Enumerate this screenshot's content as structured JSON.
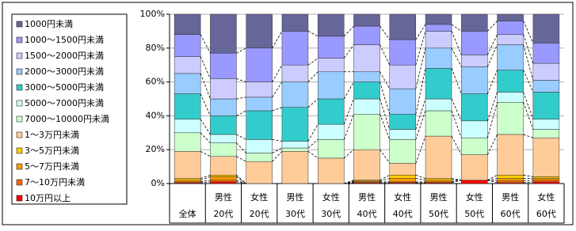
{
  "chart_data": {
    "type": "stacked_bar_100",
    "categories": [
      [
        "全体"
      ],
      [
        "男性",
        "20代"
      ],
      [
        "女性",
        "20代"
      ],
      [
        "男性",
        "30代"
      ],
      [
        "女性",
        "30代"
      ],
      [
        "男性",
        "40代"
      ],
      [
        "女性",
        "40代"
      ],
      [
        "男性",
        "50代"
      ],
      [
        "女性",
        "50代"
      ],
      [
        "男性",
        "60代"
      ],
      [
        "女性",
        "60代"
      ]
    ],
    "series": [
      {
        "name": "10万円以上",
        "color": "#ff0000",
        "values": [
          0.5,
          1,
          0,
          0,
          0,
          0.5,
          0.5,
          0.5,
          2,
          0.5,
          1
        ]
      },
      {
        "name": "7～10万円未満",
        "color": "#ff6600",
        "values": [
          0.5,
          1,
          0,
          0,
          0,
          0.5,
          0.5,
          0.5,
          0,
          1,
          1
        ]
      },
      {
        "name": "5～7万円未満",
        "color": "#ff9900",
        "values": [
          1,
          2,
          0,
          0,
          0,
          0.5,
          2,
          1,
          0,
          1.5,
          1
        ]
      },
      {
        "name": "3～5万円未満",
        "color": "#ffcc00",
        "values": [
          1,
          1,
          0,
          0,
          0,
          0.5,
          2,
          1,
          0,
          2,
          1
        ]
      },
      {
        "name": "1～3万円未満",
        "color": "#ffcc99",
        "values": [
          16,
          11,
          13,
          19,
          15,
          18,
          7,
          25,
          15,
          24,
          23
        ]
      },
      {
        "name": "7000～10000円未満",
        "color": "#ccffcc",
        "values": [
          11,
          8,
          5,
          2,
          11,
          21,
          14,
          15,
          10,
          19,
          5
        ]
      },
      {
        "name": "5000～7000円未満",
        "color": "#ccffff",
        "values": [
          8,
          5,
          8,
          4,
          9,
          9,
          6,
          7,
          10,
          6,
          6
        ]
      },
      {
        "name": "3000～5000円未満",
        "color": "#33cccc",
        "values": [
          15,
          11,
          17,
          20,
          15,
          10,
          9,
          18,
          16,
          13,
          16
        ]
      },
      {
        "name": "2000～3000円未満",
        "color": "#99ccff",
        "values": [
          12,
          10,
          8,
          15,
          16,
          6,
          15,
          12,
          16,
          15,
          7
        ]
      },
      {
        "name": "1500～2000円未満",
        "color": "#ccccff",
        "values": [
          10,
          12,
          9,
          10,
          8,
          16,
          14,
          10,
          7,
          6,
          10
        ]
      },
      {
        "name": "1000～1500円未満",
        "color": "#9999ff",
        "values": [
          13,
          15,
          20,
          20,
          13,
          11,
          15,
          4,
          14,
          8,
          12
        ]
      },
      {
        "name": "1000円未満",
        "color": "#666699",
        "values": [
          12,
          23,
          20,
          10,
          13,
          7,
          15,
          6,
          10,
          4,
          17
        ]
      }
    ],
    "ylim": [
      0,
      100
    ],
    "yticks": [
      {
        "value": 0,
        "label": "0%"
      },
      {
        "value": 20,
        "label": "20%"
      },
      {
        "value": 40,
        "label": "40%"
      },
      {
        "value": 60,
        "label": "60%"
      },
      {
        "value": 80,
        "label": "80%"
      },
      {
        "value": 100,
        "label": "100%"
      }
    ],
    "grid": true
  }
}
